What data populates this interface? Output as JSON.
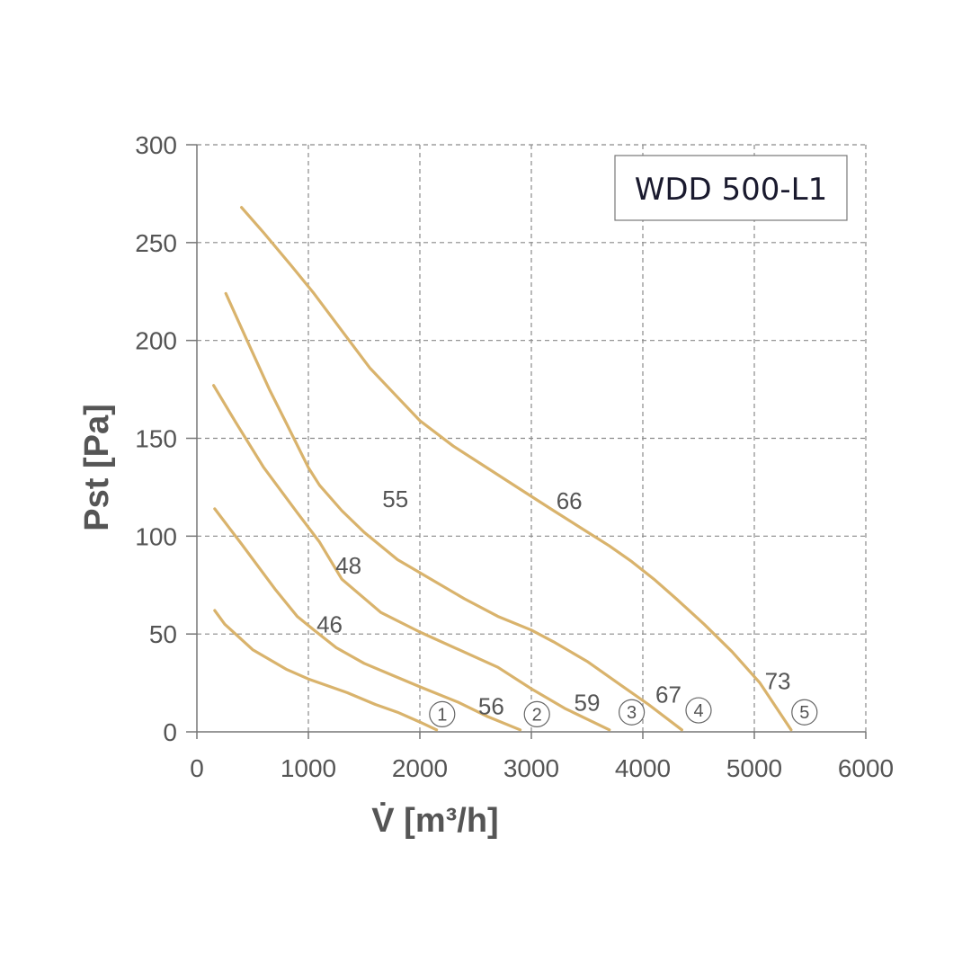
{
  "chart_data": {
    "type": "line",
    "title": "WDD 500-L1",
    "xlabel": "V̇ [m³/h]",
    "ylabel": "Pst [Pa]",
    "xlim": [
      0,
      6000
    ],
    "ylim": [
      0,
      300
    ],
    "xticks": [
      "0",
      "1000",
      "2000",
      "3000",
      "4000",
      "5000",
      "6000"
    ],
    "yticks": [
      "0",
      "50",
      "100",
      "150",
      "200",
      "250",
      "300"
    ],
    "grid": true,
    "series_color": "#D9B36C",
    "series": [
      {
        "label": "1",
        "x": [
          160,
          250,
          500,
          800,
          1000,
          1350,
          1600,
          1800,
          2000,
          2150
        ],
        "y": [
          62,
          55,
          42,
          32,
          27,
          20,
          14,
          10,
          5,
          1
        ]
      },
      {
        "label": "2",
        "x": [
          160,
          400,
          700,
          900,
          1050,
          1250,
          1500,
          1750,
          2000,
          2350,
          2600,
          2900
        ],
        "y": [
          114,
          96,
          73,
          59,
          52,
          43,
          35,
          29,
          23,
          15,
          8,
          1
        ]
      },
      {
        "label": "3",
        "x": [
          150,
          350,
          600,
          900,
          1100,
          1300,
          1650,
          2000,
          2350,
          2700,
          3000,
          3300,
          3700
        ],
        "y": [
          177,
          158,
          135,
          112,
          97,
          78,
          61,
          51,
          42,
          33,
          22,
          12,
          1
        ]
      },
      {
        "label": "4",
        "x": [
          260,
          450,
          650,
          800,
          1000,
          1100,
          1300,
          1500,
          1800,
          2100,
          2400,
          2700,
          3000,
          3200,
          3500,
          3800,
          4050,
          4350
        ],
        "y": [
          224,
          200,
          175,
          158,
          135,
          126,
          113,
          102,
          88,
          78,
          68,
          59,
          52,
          46,
          36,
          24,
          14,
          1
        ]
      },
      {
        "label": "5",
        "x": [
          400,
          600,
          850,
          1050,
          1300,
          1550,
          1800,
          2000,
          2300,
          2600,
          2900,
          3200,
          3450,
          3700,
          3900,
          4100,
          4300,
          4550,
          4800,
          5050,
          5330
        ],
        "y": [
          268,
          255,
          238,
          224,
          205,
          186,
          171,
          159,
          146,
          135,
          124,
          113,
          104,
          95,
          87,
          78,
          68,
          55,
          41,
          25,
          1
        ]
      }
    ],
    "annotations": [
      {
        "text": "55",
        "x": 1780,
        "y": 119
      },
      {
        "text": "66",
        "x": 3340,
        "y": 118
      },
      {
        "text": "48",
        "x": 1360,
        "y": 85
      },
      {
        "text": "46",
        "x": 1190,
        "y": 55
      },
      {
        "text": "56",
        "x": 2640,
        "y": 13
      },
      {
        "text": "59",
        "x": 3500,
        "y": 15
      },
      {
        "text": "67",
        "x": 4230,
        "y": 19
      },
      {
        "text": "73",
        "x": 5210,
        "y": 26
      }
    ],
    "curve_markers": [
      {
        "text": "1",
        "x": 2200,
        "y": 9
      },
      {
        "text": "2",
        "x": 3050,
        "y": 9
      },
      {
        "text": "3",
        "x": 3900,
        "y": 10
      },
      {
        "text": "4",
        "x": 4500,
        "y": 11
      },
      {
        "text": "5",
        "x": 5450,
        "y": 10
      }
    ]
  }
}
